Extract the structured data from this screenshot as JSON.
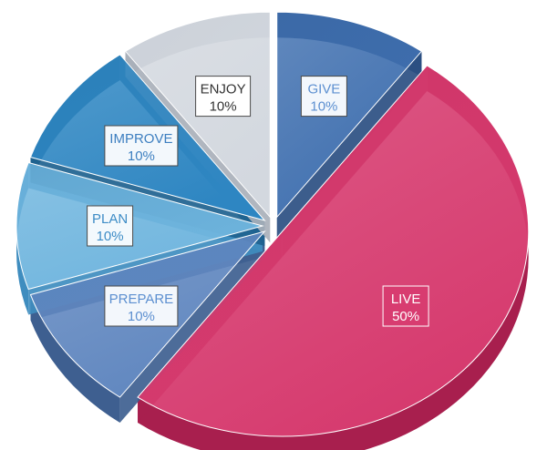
{
  "chart_data": {
    "type": "pie",
    "style": "3d-exploded",
    "title": "",
    "legend": "none",
    "slices": [
      {
        "category": "GIVE",
        "value": 10,
        "label": "GIVE",
        "value_label": "10%",
        "color": "#3F6FAF",
        "side_color": "#2B4F82",
        "text_color": "#5C8FD0",
        "label_fill": "#F3F7FC"
      },
      {
        "category": "LIVE",
        "value": 50,
        "label": "LIVE",
        "value_label": "50%",
        "color": "#D63A6E",
        "side_color": "#A81F4E",
        "text_color": "#FFFFFF",
        "label_fill": "#D83C70"
      },
      {
        "category": "PREPARE",
        "value": 10,
        "label": "PREPARE",
        "value_label": "10%",
        "color": "#5F86BF",
        "side_color": "#3E5F90",
        "text_color": "#5C8FD0",
        "label_fill": "#F3F7FC"
      },
      {
        "category": "PLAN",
        "value": 10,
        "label": "PLAN",
        "value_label": "10%",
        "color": "#6FB5DE",
        "side_color": "#3F8DBF",
        "text_color": "#3D8CC6",
        "label_fill": "#F3F9FD"
      },
      {
        "category": "IMPROVE",
        "value": 10,
        "label": "IMPROVE",
        "value_label": "10%",
        "color": "#2E86C2",
        "side_color": "#1E628F",
        "text_color": "#3D7FC0",
        "label_fill": "#F3F8FC"
      },
      {
        "category": "ENJOY",
        "value": 10,
        "label": "ENJOY",
        "value_label": "10%",
        "color": "#D3D8DF",
        "side_color": "#A9B0BA",
        "text_color": "#333333",
        "label_fill": "#FFFFFF"
      }
    ]
  }
}
